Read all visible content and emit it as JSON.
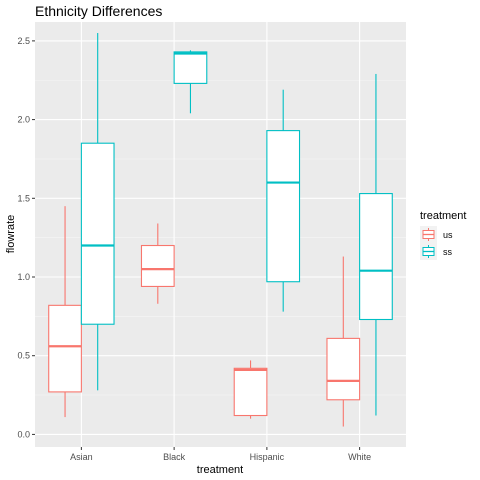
{
  "chart_data": {
    "type": "boxplot",
    "title": "Ethnicity Differences",
    "xlabel": "treatment",
    "ylabel": "flowrate",
    "ylim": [
      -0.08,
      2.62
    ],
    "yticks": [
      0.0,
      0.5,
      1.0,
      1.5,
      2.0,
      2.5
    ],
    "ytick_labels": [
      "0.0",
      "0.5",
      "1.0",
      "1.5",
      "2.0",
      "2.5"
    ],
    "categories": [
      "Asian",
      "Black",
      "Hispanic",
      "White"
    ],
    "grid": true,
    "legend": {
      "title": "treatment",
      "position": "right",
      "entries": [
        "us",
        "ss"
      ]
    },
    "series": [
      {
        "name": "us",
        "color": "#F8766D",
        "boxes": [
          {
            "category": "Asian",
            "whisker_low": 0.11,
            "q1": 0.27,
            "median": 0.56,
            "q3": 0.82,
            "whisker_high": 1.45
          },
          {
            "category": "Black",
            "whisker_low": 0.83,
            "q1": 0.94,
            "median": 1.05,
            "q3": 1.2,
            "whisker_high": 1.34
          },
          {
            "category": "Hispanic",
            "whisker_low": 0.1,
            "q1": 0.12,
            "median": 0.41,
            "q3": 0.42,
            "whisker_high": 0.47
          },
          {
            "category": "White",
            "whisker_low": 0.05,
            "q1": 0.22,
            "median": 0.34,
            "q3": 0.61,
            "whisker_high": 1.13
          }
        ]
      },
      {
        "name": "ss",
        "color": "#00BFC4",
        "boxes": [
          {
            "category": "Asian",
            "whisker_low": 0.28,
            "q1": 0.7,
            "median": 1.2,
            "q3": 1.85,
            "whisker_high": 2.55
          },
          {
            "category": "Black",
            "whisker_low": 2.04,
            "q1": 2.23,
            "median": 2.42,
            "q3": 2.43,
            "whisker_high": 2.44
          },
          {
            "category": "Hispanic",
            "whisker_low": 0.78,
            "q1": 0.97,
            "median": 1.6,
            "q3": 1.93,
            "whisker_high": 2.19
          },
          {
            "category": "White",
            "whisker_low": 0.12,
            "q1": 0.73,
            "median": 1.04,
            "q3": 1.53,
            "whisker_high": 2.29
          }
        ]
      }
    ],
    "colors": {
      "panel_background": "#EBEBEB",
      "grid_major": "#FFFFFF",
      "grid_minor": "#F5F5F5",
      "box_fill": "#FFFFFF"
    }
  }
}
